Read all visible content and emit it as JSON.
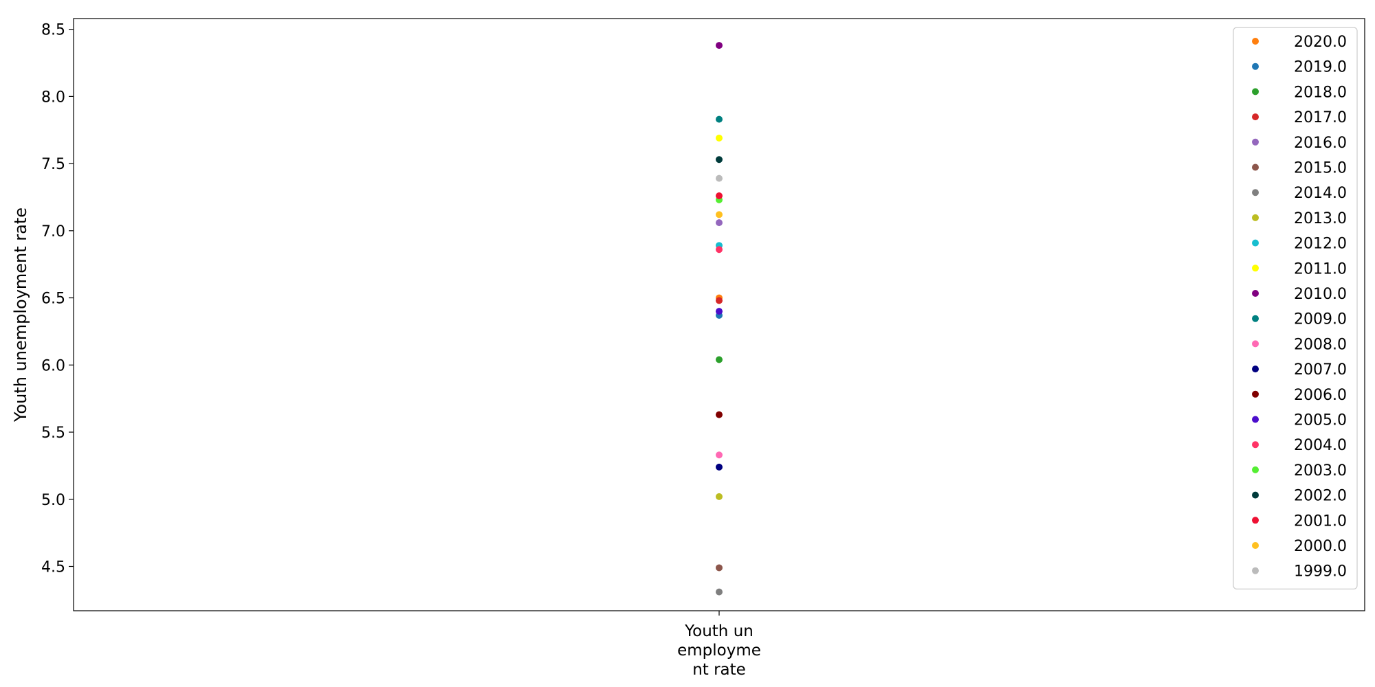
{
  "chart_data": {
    "type": "scatter",
    "title": "",
    "xlabel": "",
    "ylabel": "Youth unemployment rate",
    "categories": [
      "Youth un\nemployme\nnt rate"
    ],
    "ylim": [
      4.17,
      8.58
    ],
    "y_ticks": [
      "4.5",
      "5.0",
      "5.5",
      "6.0",
      "6.5",
      "7.0",
      "7.5",
      "8.0",
      "8.5"
    ],
    "grid": false,
    "legend_position": "top-right",
    "series": [
      {
        "name": "2020.0",
        "color": "#ff7f0e",
        "values": [
          6.5
        ]
      },
      {
        "name": "2019.0",
        "color": "#1f77b4",
        "values": [
          6.37
        ]
      },
      {
        "name": "2018.0",
        "color": "#2ca02c",
        "values": [
          6.04
        ]
      },
      {
        "name": "2017.0",
        "color": "#d62728",
        "values": [
          6.48
        ]
      },
      {
        "name": "2016.0",
        "color": "#9467bd",
        "values": [
          7.06
        ]
      },
      {
        "name": "2015.0",
        "color": "#8c564b",
        "values": [
          4.49
        ]
      },
      {
        "name": "2014.0",
        "color": "#7f7f7f",
        "values": [
          4.31
        ]
      },
      {
        "name": "2013.0",
        "color": "#bcbd22",
        "values": [
          5.02
        ]
      },
      {
        "name": "2012.0",
        "color": "#17becf",
        "values": [
          6.89
        ]
      },
      {
        "name": "2011.0",
        "color": "#ffff00",
        "values": [
          7.69
        ]
      },
      {
        "name": "2010.0",
        "color": "#800080",
        "values": [
          8.38
        ]
      },
      {
        "name": "2009.0",
        "color": "#008080",
        "values": [
          7.83
        ]
      },
      {
        "name": "2008.0",
        "color": "#ff69b4",
        "values": [
          5.33
        ]
      },
      {
        "name": "2007.0",
        "color": "#000080",
        "values": [
          5.24
        ]
      },
      {
        "name": "2006.0",
        "color": "#800000",
        "values": [
          5.63
        ]
      },
      {
        "name": "2005.0",
        "color": "#4b0dcc",
        "values": [
          6.4
        ]
      },
      {
        "name": "2004.0",
        "color": "#ff3366",
        "values": [
          6.86
        ]
      },
      {
        "name": "2003.0",
        "color": "#55ee33",
        "values": [
          7.23
        ]
      },
      {
        "name": "2002.0",
        "color": "#003b3b",
        "values": [
          7.53
        ]
      },
      {
        "name": "2001.0",
        "color": "#ee1133",
        "values": [
          7.26
        ]
      },
      {
        "name": "2000.0",
        "color": "#ffc020",
        "values": [
          7.12
        ]
      },
      {
        "name": "1999.0",
        "color": "#bbbbbb",
        "values": [
          7.39
        ]
      }
    ]
  }
}
